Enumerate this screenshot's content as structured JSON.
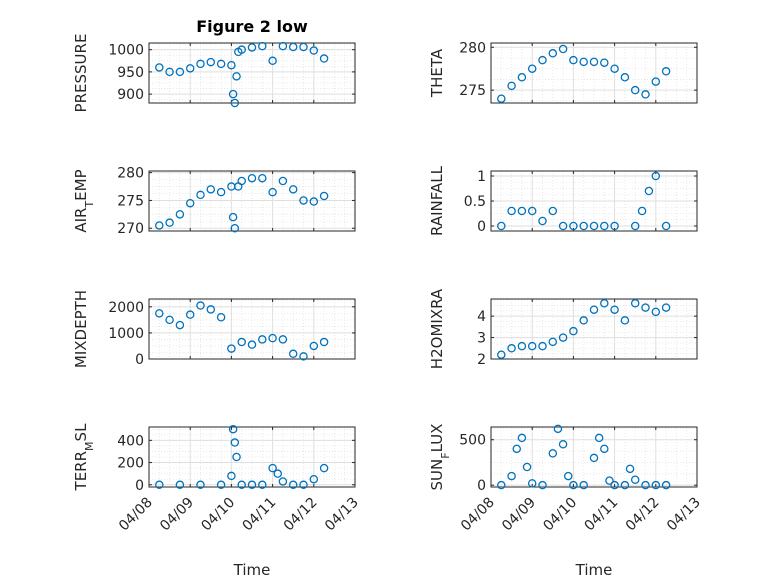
{
  "figure": {
    "title": "Figure 2 low",
    "date_ticks": [
      "04/08",
      "04/09",
      "04/10",
      "04/11",
      "04/12",
      "04/13"
    ],
    "xlabel": "Time",
    "marker_color": "#0072bd"
  },
  "chart_data": [
    {
      "type": "scatter",
      "ylabel": "PRESSURE",
      "ylim": [
        880,
        1015
      ],
      "yticks": [
        900,
        950,
        1000
      ],
      "grid": true,
      "x": [
        "04/08 06:00",
        "04/08 12:00",
        "04/08 18:00",
        "04/09 00:00",
        "04/09 06:00",
        "04/09 12:00",
        "04/09 18:00",
        "04/10 00:00",
        "04/10 01:00",
        "04/10 02:00",
        "04/10 03:00",
        "04/10 04:00",
        "04/10 06:00",
        "04/10 12:00",
        "04/10 18:00",
        "04/11 00:00",
        "04/11 06:00",
        "04/11 12:00",
        "04/11 18:00",
        "04/12 00:00",
        "04/12 06:00"
      ],
      "y": [
        960,
        950,
        950,
        958,
        968,
        972,
        968,
        965,
        900,
        880,
        940,
        995,
        1000,
        1005,
        1008,
        975,
        1008,
        1006,
        1006,
        998,
        980
      ]
    },
    {
      "type": "scatter",
      "ylabel": "THETA",
      "ylim": [
        273.5,
        280.5
      ],
      "yticks": [
        275,
        280
      ],
      "grid": true,
      "x": [
        "04/08 06:00",
        "04/08 12:00",
        "04/08 18:00",
        "04/09 00:00",
        "04/09 06:00",
        "04/09 12:00",
        "04/09 18:00",
        "04/10 00:00",
        "04/10 06:00",
        "04/10 12:00",
        "04/10 18:00",
        "04/11 00:00",
        "04/11 06:00",
        "04/11 12:00",
        "04/11 18:00",
        "04/12 00:00",
        "04/12 06:00"
      ],
      "y": [
        274,
        275.5,
        276.5,
        277.5,
        278.5,
        279.3,
        279.8,
        278.5,
        278.3,
        278.3,
        278.2,
        277.5,
        276.5,
        275,
        274.5,
        276,
        277.2
      ]
    },
    {
      "type": "scatter",
      "ylabel": "AIR_TEMP",
      "ylim": [
        269.5,
        280.3
      ],
      "yticks": [
        270,
        275,
        280
      ],
      "grid": true,
      "x": [
        "04/08 06:00",
        "04/08 12:00",
        "04/08 18:00",
        "04/09 00:00",
        "04/09 06:00",
        "04/09 12:00",
        "04/09 18:00",
        "04/10 00:00",
        "04/10 01:00",
        "04/10 02:00",
        "04/10 04:00",
        "04/10 06:00",
        "04/10 12:00",
        "04/10 18:00",
        "04/11 00:00",
        "04/11 06:00",
        "04/11 12:00",
        "04/11 18:00",
        "04/12 00:00",
        "04/12 06:00"
      ],
      "y": [
        270.5,
        271,
        272.5,
        274.5,
        276,
        277,
        276.5,
        277.5,
        272,
        270,
        277.5,
        278.5,
        279,
        279,
        276.5,
        278.5,
        277,
        275,
        274.8,
        275.8
      ]
    },
    {
      "type": "scatter",
      "ylabel": "RAINFALL",
      "ylim": [
        -0.1,
        1.1
      ],
      "yticks": [
        0,
        0.5,
        1
      ],
      "ytick_labels": [
        "0",
        "0.5",
        "1"
      ],
      "grid": true,
      "x": [
        "04/08 06:00",
        "04/08 12:00",
        "04/08 18:00",
        "04/09 00:00",
        "04/09 06:00",
        "04/09 12:00",
        "04/09 18:00",
        "04/10 00:00",
        "04/10 06:00",
        "04/10 12:00",
        "04/10 18:00",
        "04/11 00:00",
        "04/11 12:00",
        "04/11 16:00",
        "04/11 20:00",
        "04/12 00:00",
        "04/12 06:00"
      ],
      "y": [
        0,
        0.3,
        0.3,
        0.3,
        0.1,
        0.3,
        0,
        0,
        0,
        0,
        0,
        0,
        0,
        0.3,
        0.7,
        1,
        0
      ]
    },
    {
      "type": "scatter",
      "ylabel": "MIXDEPTH",
      "ylim": [
        0,
        2300
      ],
      "yticks": [
        0,
        1000,
        2000
      ],
      "grid": true,
      "x": [
        "04/08 06:00",
        "04/08 12:00",
        "04/08 18:00",
        "04/09 00:00",
        "04/09 06:00",
        "04/09 12:00",
        "04/09 18:00",
        "04/10 00:00",
        "04/10 06:00",
        "04/10 12:00",
        "04/10 18:00",
        "04/11 00:00",
        "04/11 06:00",
        "04/11 12:00",
        "04/11 18:00",
        "04/12 00:00",
        "04/12 06:00"
      ],
      "y": [
        1750,
        1500,
        1300,
        1700,
        2050,
        1900,
        1600,
        400,
        650,
        550,
        750,
        800,
        750,
        200,
        100,
        500,
        650
      ]
    },
    {
      "type": "scatter",
      "ylabel": "H2OMIXRA",
      "ylim": [
        2,
        4.8
      ],
      "yticks": [
        2,
        3,
        4
      ],
      "grid": true,
      "x": [
        "04/08 06:00",
        "04/08 12:00",
        "04/08 18:00",
        "04/09 00:00",
        "04/09 06:00",
        "04/09 12:00",
        "04/09 18:00",
        "04/10 00:00",
        "04/10 06:00",
        "04/10 12:00",
        "04/10 18:00",
        "04/11 00:00",
        "04/11 06:00",
        "04/11 12:00",
        "04/11 18:00",
        "04/12 00:00",
        "04/12 06:00"
      ],
      "y": [
        2.2,
        2.5,
        2.6,
        2.6,
        2.6,
        2.8,
        3,
        3.3,
        3.8,
        4.3,
        4.6,
        4.3,
        3.8,
        4.6,
        4.4,
        4.2,
        4.4
      ]
    },
    {
      "type": "scatter",
      "ylabel": "TERR_MSL",
      "ylim": [
        -20,
        520
      ],
      "yticks": [
        0,
        200,
        400
      ],
      "grid": true,
      "x": [
        "04/08 06:00",
        "04/08 18:00",
        "04/09 06:00",
        "04/09 18:00",
        "04/10 00:00",
        "04/10 01:00",
        "04/10 02:00",
        "04/10 03:00",
        "04/10 06:00",
        "04/10 12:00",
        "04/10 18:00",
        "04/11 00:00",
        "04/11 03:00",
        "04/11 06:00",
        "04/11 12:00",
        "04/11 18:00",
        "04/12 00:00",
        "04/12 06:00"
      ],
      "y": [
        0,
        0,
        0,
        0,
        80,
        500,
        380,
        250,
        0,
        0,
        0,
        150,
        100,
        30,
        0,
        0,
        50,
        150
      ]
    },
    {
      "type": "scatter",
      "ylabel": "SUN_FLUX",
      "ylim": [
        -20,
        640
      ],
      "yticks": [
        0,
        500
      ],
      "grid": true,
      "x": [
        "04/08 06:00",
        "04/08 12:00",
        "04/08 15:00",
        "04/08 18:00",
        "04/08 21:00",
        "04/09 00:00",
        "04/09 06:00",
        "04/09 12:00",
        "04/09 15:00",
        "04/09 18:00",
        "04/09 21:00",
        "04/10 00:00",
        "04/10 06:00",
        "04/10 12:00",
        "04/10 15:00",
        "04/10 18:00",
        "04/10 21:00",
        "04/11 00:00",
        "04/11 06:00",
        "04/11 09:00",
        "04/11 12:00",
        "04/11 18:00",
        "04/12 00:00",
        "04/12 06:00"
      ],
      "y": [
        0,
        100,
        400,
        520,
        200,
        20,
        0,
        350,
        620,
        450,
        100,
        0,
        0,
        300,
        520,
        400,
        50,
        0,
        0,
        180,
        60,
        0,
        0,
        0
      ]
    }
  ]
}
